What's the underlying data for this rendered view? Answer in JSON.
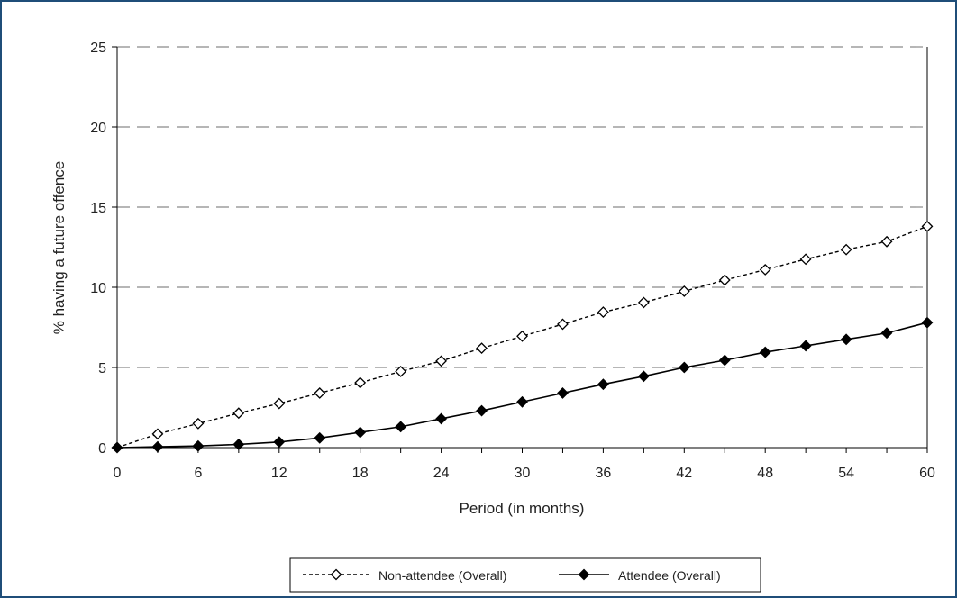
{
  "chart_data": {
    "type": "line",
    "title": "",
    "xlabel": "Period (in months)",
    "ylabel": "% having a future offence",
    "xlim": [
      0,
      60
    ],
    "ylim": [
      0,
      25
    ],
    "x_ticks": [
      0,
      6,
      12,
      18,
      24,
      30,
      36,
      42,
      48,
      54,
      60
    ],
    "y_ticks": [
      0,
      5,
      10,
      15,
      20,
      25
    ],
    "grid": "horizontal dashed",
    "legend_position": "bottom",
    "x": [
      0,
      3,
      6,
      9,
      12,
      15,
      18,
      21,
      24,
      27,
      30,
      33,
      36,
      39,
      42,
      45,
      48,
      51,
      54,
      57,
      60
    ],
    "series": [
      {
        "name": "Non-attendee (Overall)",
        "marker": "open-diamond",
        "line": "dashed",
        "color": "#000000",
        "values": [
          0,
          0.85,
          1.5,
          2.15,
          2.75,
          3.4,
          4.05,
          4.75,
          5.4,
          6.2,
          6.95,
          7.7,
          8.45,
          9.05,
          9.75,
          10.45,
          11.1,
          11.75,
          12.35,
          12.85,
          13.8
        ]
      },
      {
        "name": "Attendee (Overall)",
        "marker": "filled-diamond",
        "line": "solid",
        "color": "#000000",
        "values": [
          0,
          0.05,
          0.1,
          0.2,
          0.35,
          0.6,
          0.95,
          1.3,
          1.8,
          2.3,
          2.85,
          3.4,
          3.95,
          4.45,
          5.0,
          5.45,
          5.95,
          6.35,
          6.75,
          7.15,
          7.8
        ]
      }
    ]
  }
}
